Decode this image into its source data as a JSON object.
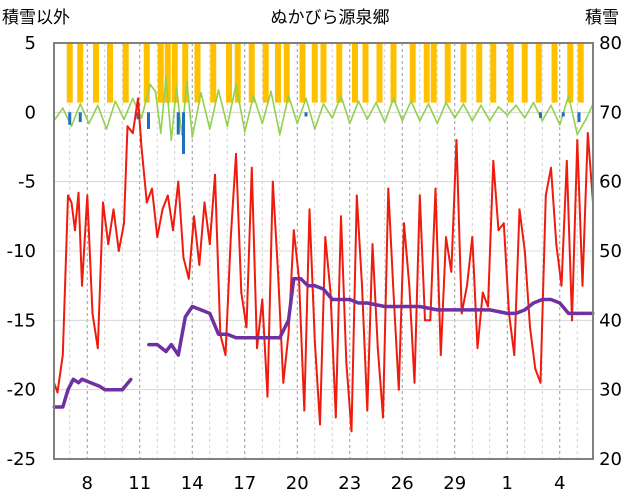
{
  "chart_data": {
    "type": "line",
    "title": "ぬかびら源泉郷",
    "left_axis_title": "積雪以外",
    "right_axis_title": "積雪",
    "x_tick_labels": [
      "8",
      "11",
      "14",
      "17",
      "20",
      "23",
      "26",
      "29",
      "1",
      "4"
    ],
    "x_range_days": [
      6.1,
      36.9
    ],
    "x_tick_day_index": [
      8,
      11,
      14,
      17,
      20,
      23,
      26,
      29,
      32,
      35
    ],
    "ylim_left": [
      -25,
      5
    ],
    "ylim_right": [
      20,
      80
    ],
    "y_ticks_left": [
      5,
      0,
      -5,
      -10,
      -15,
      -20,
      -25
    ],
    "y_ticks_right": [
      80,
      70,
      60,
      50,
      40,
      30,
      20
    ],
    "grid": "dashed vertical at x ticks and daily",
    "colors": {
      "temperature": "#ee1c0e",
      "snow_depth": "#7030a0",
      "snowfall": "#ffc000",
      "change": "#92d050",
      "precip": "#1f6ebf"
    },
    "series": {
      "temperature": {
        "axis": "left",
        "x": [
          6.1,
          6.3,
          6.6,
          6.9,
          7.1,
          7.3,
          7.5,
          7.7,
          8.0,
          8.3,
          8.6,
          8.9,
          9.2,
          9.5,
          9.8,
          10.1,
          10.3,
          10.6,
          10.9,
          11.1,
          11.4,
          11.7,
          12.0,
          12.3,
          12.6,
          12.9,
          13.2,
          13.5,
          13.8,
          14.1,
          14.4,
          14.7,
          15.0,
          15.3,
          15.6,
          15.9,
          16.2,
          16.5,
          16.8,
          17.1,
          17.4,
          17.7,
          18.0,
          18.3,
          18.6,
          18.9,
          19.2,
          19.5,
          19.8,
          20.1,
          20.4,
          20.7,
          21.0,
          21.3,
          21.6,
          21.9,
          22.2,
          22.5,
          22.8,
          23.1,
          23.4,
          23.7,
          24.0,
          24.3,
          24.6,
          24.9,
          25.2,
          25.5,
          25.8,
          26.1,
          26.4,
          26.7,
          27.0,
          27.3,
          27.6,
          27.9,
          28.2,
          28.5,
          28.8,
          29.1,
          29.4,
          29.7,
          30.0,
          30.3,
          30.6,
          30.9,
          31.2,
          31.5,
          31.8,
          32.1,
          32.4,
          32.7,
          33.0,
          33.3,
          33.6,
          33.9,
          34.2,
          34.5,
          34.8,
          35.1,
          35.4,
          35.7,
          36.0,
          36.3,
          36.6,
          36.9
        ],
        "y": [
          -19.5,
          -20.2,
          -17.5,
          -6.0,
          -6.5,
          -8.5,
          -5.8,
          -12.5,
          -6.0,
          -14.5,
          -17.0,
          -6.5,
          -9.5,
          -7.0,
          -10.0,
          -8.0,
          -1.0,
          -1.5,
          1.0,
          -2.5,
          -6.5,
          -5.5,
          -9.0,
          -7.0,
          -6.0,
          -8.5,
          -5.0,
          -10.5,
          -12.0,
          -7.5,
          -11.0,
          -6.5,
          -9.5,
          -4.5,
          -16.0,
          -17.5,
          -9.0,
          -3.0,
          -13.0,
          -15.5,
          -4.0,
          -17.0,
          -13.5,
          -20.5,
          -5.0,
          -11.5,
          -19.5,
          -16.0,
          -8.5,
          -12.0,
          -21.5,
          -7.0,
          -16.5,
          -22.5,
          -9.0,
          -13.0,
          -22.0,
          -7.5,
          -18.0,
          -23.0,
          -6.0,
          -12.5,
          -21.5,
          -9.5,
          -17.0,
          -22.0,
          -5.5,
          -13.0,
          -20.0,
          -8.0,
          -12.5,
          -19.5,
          -6.0,
          -15.0,
          -15.0,
          -5.5,
          -17.5,
          -9.0,
          -11.5,
          -2.0,
          -14.5,
          -12.5,
          -9.0,
          -17.0,
          -13.0,
          -14.0,
          -3.5,
          -8.5,
          -8.0,
          -14.5,
          -17.5,
          -7.0,
          -10.0,
          -15.5,
          -18.5,
          -19.5,
          -6.0,
          -4.0,
          -9.5,
          -12.5,
          -3.5,
          -15.0,
          -2.0,
          -12.5,
          -1.5,
          -6.5
        ]
      },
      "snow_depth": {
        "axis": "right",
        "x": [
          6.1,
          6.6,
          6.9,
          7.2,
          7.5,
          7.7,
          8.2,
          8.7,
          9.0,
          9.5,
          10.0,
          10.5,
          11.0,
          11.5,
          12.0,
          12.5,
          12.8,
          13.2,
          13.6,
          14.0,
          14.5,
          15.0,
          15.5,
          16.0,
          16.5,
          17.0,
          17.5,
          18.0,
          18.5,
          19.0,
          19.5,
          19.8,
          20.2,
          20.6,
          21.0,
          21.5,
          22.0,
          22.5,
          23.0,
          23.5,
          24.0,
          25.0,
          26.0,
          27.0,
          28.0,
          29.0,
          30.0,
          31.0,
          32.0,
          32.5,
          33.0,
          33.5,
          34.0,
          34.5,
          35.0,
          35.5,
          36.0,
          36.5,
          36.9
        ],
        "y": [
          27.5,
          27.5,
          30.0,
          31.5,
          31.0,
          31.5,
          31.0,
          30.5,
          30.0,
          30.0,
          30.0,
          31.5,
          null,
          36.5,
          36.5,
          35.5,
          36.5,
          35.0,
          40.5,
          42.0,
          41.5,
          41.0,
          38.0,
          38.0,
          37.5,
          37.5,
          37.5,
          37.5,
          37.5,
          37.5,
          40.0,
          46.0,
          46.0,
          45.0,
          45.0,
          44.5,
          43.0,
          43.0,
          43.0,
          42.5,
          42.5,
          42.0,
          42.0,
          42.0,
          41.5,
          41.5,
          41.5,
          41.5,
          41.0,
          41.0,
          41.5,
          42.5,
          43.0,
          43.0,
          42.5,
          41.0,
          41.0,
          41.0,
          41.0
        ]
      },
      "snowfall_bars": {
        "axis": "left",
        "x": [
          7.0,
          7.6,
          8.5,
          9.3,
          10.2,
          11.4,
          12.2,
          12.6,
          13.0,
          13.6,
          14.3,
          15.2,
          16.1,
          16.6,
          17.4,
          18.2,
          18.9,
          19.4,
          20.3,
          21.0,
          21.5,
          22.4,
          23.3,
          23.9,
          24.7,
          25.5,
          26.6,
          27.4,
          27.8,
          28.6,
          29.5,
          30.4,
          31.2,
          32.2,
          33.0,
          33.8,
          34.7,
          35.6,
          36.2
        ],
        "top": [
          5,
          5,
          5,
          5,
          5,
          5,
          5,
          5,
          5,
          5,
          5,
          5,
          5,
          5,
          5,
          5,
          5,
          5,
          5,
          5,
          5,
          5,
          5,
          5,
          5,
          5,
          5,
          5,
          5,
          5,
          5,
          5,
          5,
          5,
          5,
          5,
          5,
          5,
          5
        ]
      },
      "change": {
        "axis": "left",
        "x": [
          6.1,
          6.6,
          7.1,
          7.6,
          8.1,
          8.6,
          9.1,
          9.6,
          10.1,
          10.6,
          11.1,
          11.6,
          11.9,
          12.2,
          12.5,
          12.8,
          13.1,
          13.4,
          13.7,
          14.0,
          14.5,
          15.0,
          15.5,
          16.0,
          16.5,
          17.0,
          17.5,
          18.0,
          18.5,
          19.0,
          19.5,
          20.0,
          20.5,
          21.0,
          21.5,
          22.0,
          22.5,
          23.0,
          23.5,
          24.0,
          24.5,
          25.0,
          25.5,
          26.0,
          26.5,
          27.0,
          27.5,
          28.0,
          28.5,
          29.0,
          29.5,
          30.0,
          30.5,
          31.0,
          31.5,
          32.0,
          32.5,
          33.0,
          33.5,
          34.0,
          34.5,
          35.0,
          35.5,
          36.0,
          36.5,
          36.9
        ],
        "y": [
          -0.6,
          0.3,
          -1.0,
          0.6,
          -0.8,
          0.5,
          -1.2,
          0.8,
          -0.5,
          1.0,
          -0.4,
          2.0,
          1.5,
          -1.5,
          2.5,
          -2.0,
          1.8,
          -1.6,
          2.2,
          -1.8,
          1.4,
          -1.2,
          1.6,
          -1.0,
          2.0,
          -1.4,
          1.2,
          -0.8,
          1.5,
          -1.6,
          1.2,
          -0.8,
          1.0,
          -1.2,
          0.6,
          -0.4,
          1.2,
          -0.8,
          0.8,
          -0.5,
          0.7,
          -0.7,
          1.0,
          -0.6,
          0.8,
          -0.6,
          0.6,
          -0.8,
          0.7,
          -0.4,
          0.6,
          -0.6,
          0.5,
          -0.6,
          0.4,
          -0.2,
          0.5,
          -0.4,
          0.7,
          -0.6,
          0.5,
          -0.9,
          1.2,
          -1.6,
          -0.5,
          0.6
        ]
      },
      "precip": {
        "axis": "left",
        "bars": [
          {
            "x": 7.0,
            "value": -0.9
          },
          {
            "x": 7.6,
            "value": -0.7
          },
          {
            "x": 10.9,
            "value": -0.5
          },
          {
            "x": 11.5,
            "value": -1.2
          },
          {
            "x": 13.2,
            "value": -1.6
          },
          {
            "x": 13.5,
            "value": -3.0
          },
          {
            "x": 20.5,
            "value": -0.3
          },
          {
            "x": 33.9,
            "value": -0.4
          },
          {
            "x": 35.2,
            "value": -0.3
          },
          {
            "x": 36.1,
            "value": -0.7
          }
        ]
      }
    }
  }
}
